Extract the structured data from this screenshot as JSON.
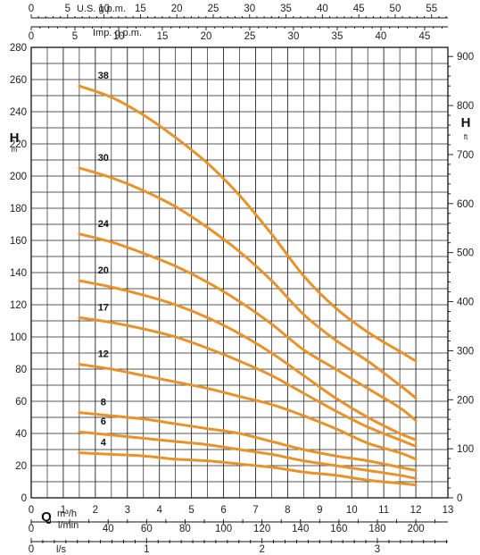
{
  "chart_data": {
    "type": "line",
    "title": "",
    "xlabel": "Q",
    "ylabel": "H",
    "x_unit": "m³/h",
    "y_unit": "m",
    "right_axis": {
      "label": "H",
      "unit": "ft",
      "ticks": [
        0,
        100,
        200,
        300,
        400,
        500,
        600,
        700,
        800,
        900
      ]
    },
    "xlim": [
      0,
      13
    ],
    "ylim": [
      0,
      280
    ],
    "x_ticks": [
      0,
      1,
      2,
      3,
      4,
      5,
      6,
      7,
      8,
      9,
      10,
      11,
      12,
      13
    ],
    "y_ticks": [
      0,
      20,
      40,
      60,
      80,
      100,
      120,
      140,
      160,
      180,
      200,
      220,
      240,
      260,
      280
    ],
    "secondary_x_axes": [
      {
        "label": "l/min",
        "ticks": [
          0,
          20,
          40,
          60,
          80,
          100,
          120,
          140,
          160,
          180,
          200
        ],
        "labeled": [
          0,
          40,
          60,
          80,
          100,
          120,
          140,
          160,
          180,
          200
        ]
      },
      {
        "label": "l/s",
        "ticks": [
          0,
          1,
          2,
          3
        ]
      },
      {
        "label": "Imp. g.p.m.",
        "ticks": [
          0,
          5,
          10,
          15,
          20,
          25,
          30,
          35,
          40,
          45
        ]
      },
      {
        "label": "U.S. g.p.m.",
        "ticks": [
          0,
          5,
          10,
          15,
          20,
          25,
          30,
          35,
          40,
          45,
          50,
          55
        ]
      }
    ],
    "grid": true,
    "line_color": "#e8922a",
    "series": [
      {
        "name": "38",
        "points": [
          [
            1.5,
            256
          ],
          [
            2.5,
            249
          ],
          [
            3.5,
            238
          ],
          [
            4.5,
            224
          ],
          [
            5.5,
            208
          ],
          [
            6.5,
            188
          ],
          [
            7.5,
            164
          ],
          [
            8.5,
            138
          ],
          [
            9.5,
            118
          ],
          [
            10.5,
            103
          ],
          [
            11.5,
            91
          ],
          [
            12,
            85
          ]
        ]
      },
      {
        "name": "30",
        "points": [
          [
            1.5,
            205
          ],
          [
            2.5,
            199
          ],
          [
            3.5,
            191
          ],
          [
            4.5,
            181
          ],
          [
            5.5,
            168
          ],
          [
            6.5,
            153
          ],
          [
            7.5,
            135
          ],
          [
            8.5,
            114
          ],
          [
            9.5,
            98
          ],
          [
            10.5,
            85
          ],
          [
            11.5,
            70
          ],
          [
            12,
            62
          ]
        ]
      },
      {
        "name": "24",
        "points": [
          [
            1.5,
            164
          ],
          [
            2.5,
            159
          ],
          [
            3.5,
            152
          ],
          [
            4.5,
            144
          ],
          [
            5.5,
            134
          ],
          [
            6.5,
            122
          ],
          [
            7.5,
            108
          ],
          [
            8.5,
            92
          ],
          [
            9.5,
            80
          ],
          [
            10.5,
            68
          ],
          [
            11.5,
            56
          ],
          [
            12,
            48
          ]
        ]
      },
      {
        "name": "20",
        "points": [
          [
            1.5,
            135
          ],
          [
            2.5,
            131
          ],
          [
            3.5,
            126
          ],
          [
            4.5,
            120
          ],
          [
            5.5,
            112
          ],
          [
            6.5,
            102
          ],
          [
            7.5,
            90
          ],
          [
            8.5,
            76
          ],
          [
            9.5,
            62
          ],
          [
            10.5,
            50
          ],
          [
            11.5,
            40
          ],
          [
            12,
            36
          ]
        ]
      },
      {
        "name": "17",
        "points": [
          [
            1.5,
            112
          ],
          [
            2.5,
            109
          ],
          [
            3.5,
            105
          ],
          [
            4.5,
            100
          ],
          [
            5.5,
            93
          ],
          [
            6.5,
            85
          ],
          [
            7.5,
            76
          ],
          [
            8.5,
            65
          ],
          [
            9.5,
            54
          ],
          [
            10.5,
            44
          ],
          [
            11.5,
            36
          ],
          [
            12,
            32
          ]
        ]
      },
      {
        "name": "12",
        "points": [
          [
            1.5,
            83
          ],
          [
            2.5,
            80
          ],
          [
            3.5,
            76
          ],
          [
            4.5,
            72
          ],
          [
            5.5,
            68
          ],
          [
            6.5,
            63
          ],
          [
            7.5,
            58
          ],
          [
            8.5,
            51
          ],
          [
            9.5,
            43
          ],
          [
            10.5,
            34
          ],
          [
            11.5,
            28
          ],
          [
            12,
            24
          ]
        ]
      },
      {
        "name": "8",
        "points": [
          [
            1.5,
            53
          ],
          [
            2.5,
            51
          ],
          [
            3.5,
            49
          ],
          [
            4.5,
            46
          ],
          [
            5.5,
            43
          ],
          [
            6.5,
            40
          ],
          [
            7.5,
            35
          ],
          [
            8.5,
            30
          ],
          [
            9.5,
            26
          ],
          [
            10.5,
            23
          ],
          [
            11.5,
            19
          ],
          [
            12,
            17
          ]
        ]
      },
      {
        "name": "6",
        "points": [
          [
            1.5,
            41
          ],
          [
            2.5,
            39
          ],
          [
            3.5,
            37
          ],
          [
            4.5,
            35
          ],
          [
            5.5,
            33
          ],
          [
            6.5,
            30
          ],
          [
            7.5,
            27
          ],
          [
            8.5,
            23
          ],
          [
            9.5,
            20
          ],
          [
            10.5,
            17
          ],
          [
            11.5,
            14
          ],
          [
            12,
            12
          ]
        ]
      },
      {
        "name": "4",
        "points": [
          [
            1.5,
            28
          ],
          [
            2.5,
            27
          ],
          [
            3.5,
            26
          ],
          [
            4.5,
            24
          ],
          [
            5.5,
            23
          ],
          [
            6.5,
            21
          ],
          [
            7.5,
            19
          ],
          [
            8.5,
            16
          ],
          [
            9.5,
            14
          ],
          [
            10.5,
            11
          ],
          [
            11.5,
            9
          ],
          [
            12,
            8
          ]
        ]
      }
    ]
  }
}
